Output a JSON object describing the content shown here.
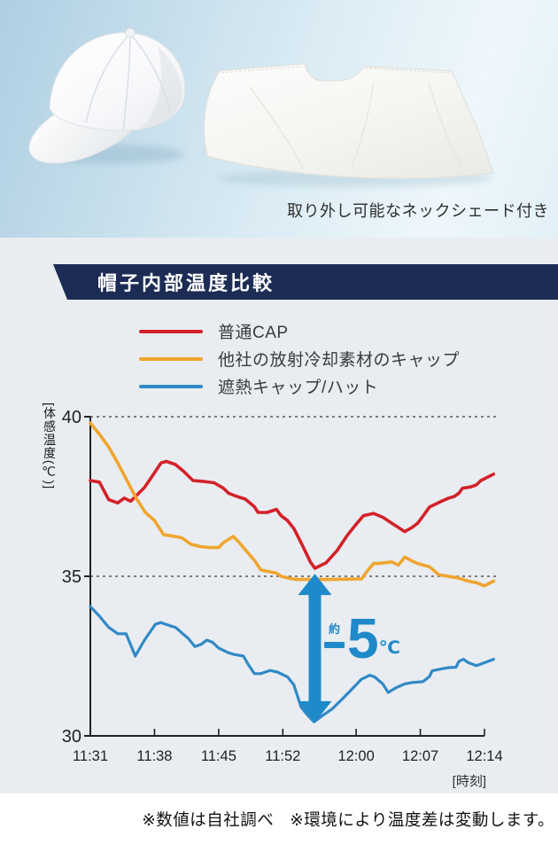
{
  "hero": {
    "caption": "取り外し可能なネックシェード付き",
    "cap_alt": "白い遮熱キャップ",
    "shade_alt": "ネックシェード"
  },
  "section": {
    "title": "帽子内部温度比較"
  },
  "legend": {
    "items": [
      {
        "label": "普通CAP",
        "color": "#d2222a"
      },
      {
        "label": "他社の放射冷却素材のキャップ",
        "color": "#efa52f"
      },
      {
        "label": "遮熱キャップ/ハット",
        "color": "#3189c5"
      }
    ]
  },
  "chart_data": {
    "type": "line",
    "title": "帽子内部温度比較",
    "ylabel": "体感温度(℃)",
    "ylabel_display": "[体感温度(℃)]",
    "xlabel_display": "[時刻]",
    "x_ticks": [
      "11:31",
      "11:38",
      "11:45",
      "11:52",
      "12:00",
      "12:07",
      "12:14"
    ],
    "x_tick_minutes": [
      0,
      7,
      14,
      21,
      29,
      36,
      43
    ],
    "y_ticks": [
      40,
      35,
      30
    ],
    "ylim": [
      30,
      40
    ],
    "xlim_minutes": [
      0,
      44
    ],
    "grid_dotted_at": [
      40,
      35
    ],
    "axis_color": "#222222",
    "grid_color": "#3a3a3a",
    "series": [
      {
        "name": "普通CAP",
        "color": "#d2222a",
        "width": 3.6,
        "points": [
          [
            0,
            38.0
          ],
          [
            1,
            37.95
          ],
          [
            2,
            37.4
          ],
          [
            3,
            37.3
          ],
          [
            3.7,
            37.45
          ],
          [
            4.4,
            37.35
          ],
          [
            5.9,
            37.78
          ],
          [
            6.9,
            38.2
          ],
          [
            7.7,
            38.55
          ],
          [
            8.3,
            38.6
          ],
          [
            9.3,
            38.5
          ],
          [
            10.2,
            38.28
          ],
          [
            11.2,
            38.0
          ],
          [
            12.4,
            37.97
          ],
          [
            13.5,
            37.93
          ],
          [
            14.5,
            37.76
          ],
          [
            15.1,
            37.6
          ],
          [
            16,
            37.5
          ],
          [
            16.9,
            37.42
          ],
          [
            17.9,
            37.18
          ],
          [
            18.3,
            37.0
          ],
          [
            19.3,
            37.0
          ],
          [
            20.3,
            37.1
          ],
          [
            20.8,
            36.9
          ],
          [
            21.5,
            36.75
          ],
          [
            22.2,
            36.5
          ],
          [
            23,
            36.05
          ],
          [
            24,
            35.45
          ],
          [
            24.5,
            35.25
          ],
          [
            25.2,
            35.35
          ],
          [
            25.7,
            35.42
          ],
          [
            26.9,
            35.8
          ],
          [
            28,
            36.27
          ],
          [
            29,
            36.63
          ],
          [
            29.8,
            36.9
          ],
          [
            30.9,
            36.97
          ],
          [
            31.9,
            36.85
          ],
          [
            32.9,
            36.66
          ],
          [
            33.6,
            36.53
          ],
          [
            34.3,
            36.4
          ],
          [
            35.1,
            36.53
          ],
          [
            35.7,
            36.66
          ],
          [
            36.2,
            36.85
          ],
          [
            37,
            37.17
          ],
          [
            38.3,
            37.35
          ],
          [
            39.1,
            37.45
          ],
          [
            39.7,
            37.5
          ],
          [
            40.2,
            37.6
          ],
          [
            40.6,
            37.76
          ],
          [
            41.5,
            37.8
          ],
          [
            42.1,
            37.86
          ],
          [
            42.6,
            38.0
          ],
          [
            44,
            38.2
          ]
        ]
      },
      {
        "name": "他社の放射冷却素材のキャップ",
        "color": "#efa52f",
        "width": 3.6,
        "points": [
          [
            0,
            39.8
          ],
          [
            1,
            39.45
          ],
          [
            2,
            39.05
          ],
          [
            3,
            38.55
          ],
          [
            4,
            38.0
          ],
          [
            5,
            37.45
          ],
          [
            6,
            37.0
          ],
          [
            7,
            36.75
          ],
          [
            8,
            36.3
          ],
          [
            9,
            36.26
          ],
          [
            10,
            36.2
          ],
          [
            11,
            36.0
          ],
          [
            12,
            35.93
          ],
          [
            13,
            35.9
          ],
          [
            14,
            35.9
          ],
          [
            14.5,
            36.05
          ],
          [
            15.6,
            36.25
          ],
          [
            16.2,
            36.07
          ],
          [
            17,
            35.8
          ],
          [
            17.9,
            35.5
          ],
          [
            18.6,
            35.2
          ],
          [
            19.4,
            35.15
          ],
          [
            20.3,
            35.1
          ],
          [
            20.8,
            35.0
          ],
          [
            21.5,
            34.95
          ],
          [
            22.5,
            34.9
          ],
          [
            26,
            34.9
          ],
          [
            29.6,
            34.92
          ],
          [
            30.2,
            35.16
          ],
          [
            30.9,
            35.4
          ],
          [
            31.4,
            35.4
          ],
          [
            32.9,
            35.45
          ],
          [
            33.6,
            35.35
          ],
          [
            34.3,
            35.6
          ],
          [
            35.1,
            35.48
          ],
          [
            35.7,
            35.4
          ],
          [
            37,
            35.3
          ],
          [
            38,
            35.05
          ],
          [
            39,
            35.0
          ],
          [
            40.1,
            34.95
          ],
          [
            41.2,
            34.85
          ],
          [
            42.1,
            34.8
          ],
          [
            43,
            34.7
          ],
          [
            44,
            34.85
          ]
        ]
      },
      {
        "name": "遮熱キャップ/ハット",
        "color": "#3189c5",
        "width": 3.2,
        "points": [
          [
            0,
            34.05
          ],
          [
            1,
            33.75
          ],
          [
            2,
            33.4
          ],
          [
            3,
            33.2
          ],
          [
            3.9,
            33.2
          ],
          [
            4.9,
            32.5
          ],
          [
            5.9,
            33.0
          ],
          [
            7.1,
            33.5
          ],
          [
            7.7,
            33.55
          ],
          [
            8.7,
            33.45
          ],
          [
            9.3,
            33.4
          ],
          [
            10.2,
            33.17
          ],
          [
            10.7,
            33.05
          ],
          [
            11.4,
            32.8
          ],
          [
            12.1,
            32.87
          ],
          [
            12.7,
            33.0
          ],
          [
            13.3,
            32.94
          ],
          [
            14,
            32.75
          ],
          [
            15.1,
            32.6
          ],
          [
            15.7,
            32.55
          ],
          [
            16.7,
            32.5
          ],
          [
            17.2,
            32.25
          ],
          [
            17.9,
            31.95
          ],
          [
            18.6,
            31.95
          ],
          [
            19.6,
            32.05
          ],
          [
            20.4,
            32.0
          ],
          [
            21.5,
            31.85
          ],
          [
            22.2,
            31.6
          ],
          [
            23,
            30.9
          ],
          [
            23.7,
            30.65
          ],
          [
            24.4,
            30.44
          ],
          [
            25.4,
            30.65
          ],
          [
            26.4,
            30.85
          ],
          [
            27.3,
            31.1
          ],
          [
            28.5,
            31.45
          ],
          [
            29.6,
            31.78
          ],
          [
            30.5,
            31.9
          ],
          [
            31,
            31.85
          ],
          [
            31.9,
            31.63
          ],
          [
            32.5,
            31.36
          ],
          [
            33.3,
            31.5
          ],
          [
            34.3,
            31.63
          ],
          [
            35.1,
            31.67
          ],
          [
            36.3,
            31.7
          ],
          [
            37,
            31.86
          ],
          [
            37.3,
            32.04
          ],
          [
            38.3,
            32.1
          ],
          [
            39.1,
            32.14
          ],
          [
            39.9,
            32.15
          ],
          [
            40.2,
            32.33
          ],
          [
            40.7,
            32.4
          ],
          [
            41.2,
            32.3
          ],
          [
            42.1,
            32.2
          ],
          [
            42.6,
            32.25
          ],
          [
            44,
            32.4
          ]
        ]
      }
    ],
    "annotation": {
      "text": "約−5℃",
      "approx": "約",
      "digit": "5",
      "unit": "℃",
      "color": "#1e8aca",
      "arrow_at_minute": 24.5,
      "arrow_from_c": 35.08,
      "arrow_to_c": 30.42
    }
  },
  "footer": {
    "note1": "※数値は自社調べ",
    "note2": "※環境により温度差は変動します。"
  }
}
